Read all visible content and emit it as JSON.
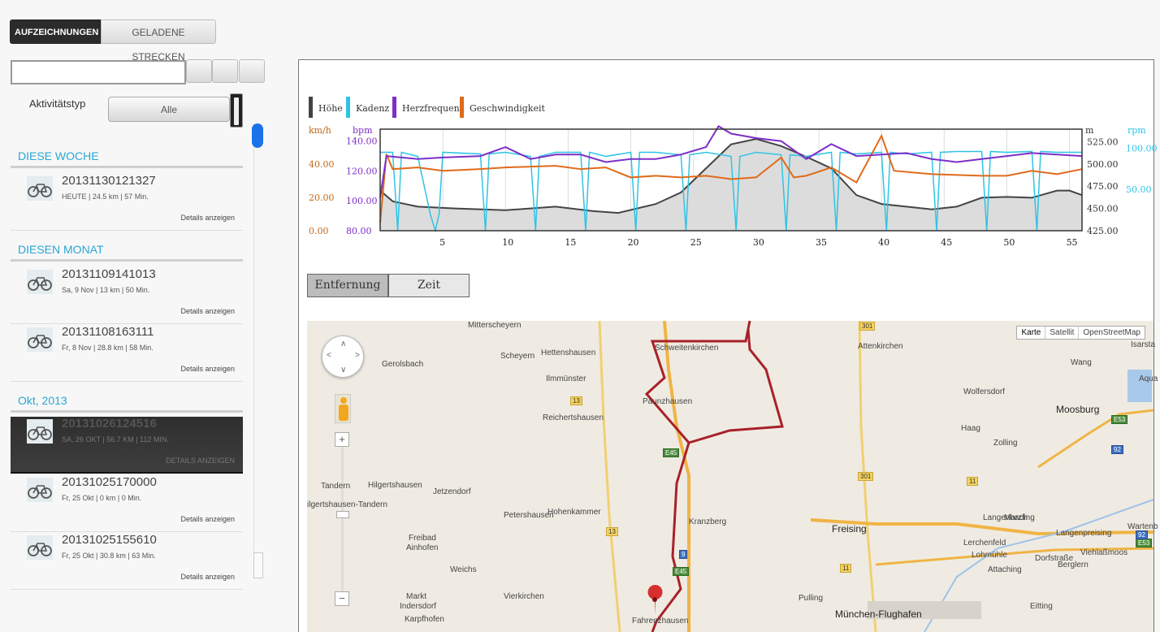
{
  "tabs": {
    "active": "AUFZEICHNUNGEN",
    "inactive": "GELADENE STRECKEN"
  },
  "search": {
    "value": ""
  },
  "filter": {
    "label": "Aktivitätstyp",
    "selected": "Alle"
  },
  "groups": [
    {
      "title": "DIESE WOCHE",
      "items": [
        {
          "title": "20131130121327",
          "sub": "HEUTE | 24.5 km | 57 Min.",
          "details": "Details anzeigen"
        }
      ]
    },
    {
      "title": "DIESEN MONAT",
      "items": [
        {
          "title": "20131109141013",
          "sub": "Sa, 9 Nov | 13 km | 50 Min.",
          "details": "Details anzeigen"
        },
        {
          "title": "20131108163111",
          "sub": "Fr, 8 Nov | 28.8 km | 58 Min.",
          "details": "Details anzeigen"
        }
      ]
    },
    {
      "title": "Okt, 2013",
      "items": [
        {
          "title": "20131026124516",
          "sub": "SA, 26 OKT | 56.7 KM | 112 MIN.",
          "details": "DETAILS ANZEIGEN"
        },
        {
          "title": "20131025170000",
          "sub": "Fr, 25 Okt | 0 km | 0 Min.",
          "details": "Details anzeigen"
        },
        {
          "title": "20131025155610",
          "sub": "Fr, 25 Okt | 30.8 km | 63 Min.",
          "details": "Details anzeigen"
        }
      ]
    }
  ],
  "chart_data": {
    "type": "line",
    "legend": [
      "Höhe",
      "Kadenz",
      "Herzfrequenz",
      "Geschwindigkeit"
    ],
    "colors": {
      "hoehe": "#444444",
      "kadenz": "#2ec4e6",
      "herz": "#7d2fc7",
      "speed": "#e06a1a"
    },
    "axis_units": {
      "speed": "km/h",
      "hr": "bpm",
      "alt": "m",
      "cad": "rpm"
    },
    "speed_ticks": [
      "0.00",
      "20.00",
      "40.00"
    ],
    "hr_ticks": [
      "80.00",
      "100.00",
      "120.00",
      "140.00"
    ],
    "alt_ticks": [
      "425.00",
      "450.00",
      "475.00",
      "500.00",
      "525.00"
    ],
    "cad_ticks": [
      "50.00",
      "100.00"
    ],
    "x_ticks": [
      "5",
      "10",
      "15",
      "20",
      "25",
      "30",
      "35",
      "40",
      "45",
      "50",
      "55"
    ],
    "xlim": [
      0,
      56
    ],
    "hoehe": [
      [
        0,
        470
      ],
      [
        1,
        458
      ],
      [
        3,
        452
      ],
      [
        6,
        450
      ],
      [
        10,
        448
      ],
      [
        14,
        452
      ],
      [
        17,
        447
      ],
      [
        19,
        445
      ],
      [
        22,
        455
      ],
      [
        24,
        468
      ],
      [
        26,
        495
      ],
      [
        28,
        522
      ],
      [
        30,
        528
      ],
      [
        32,
        520
      ],
      [
        34,
        508
      ],
      [
        36,
        495
      ],
      [
        38,
        465
      ],
      [
        40,
        455
      ],
      [
        42,
        452
      ],
      [
        44,
        449
      ],
      [
        46,
        452
      ],
      [
        48,
        462
      ],
      [
        50,
        463
      ],
      [
        52,
        462
      ],
      [
        54,
        470
      ],
      [
        55,
        470
      ],
      [
        56,
        465
      ]
    ],
    "herz": [
      [
        0,
        102
      ],
      [
        0.5,
        130
      ],
      [
        3,
        128
      ],
      [
        5,
        129
      ],
      [
        8,
        130
      ],
      [
        10,
        136
      ],
      [
        12,
        128
      ],
      [
        14,
        131
      ],
      [
        16,
        131
      ],
      [
        18,
        126
      ],
      [
        20,
        128
      ],
      [
        22,
        128
      ],
      [
        24,
        131
      ],
      [
        26,
        136
      ],
      [
        27,
        150
      ],
      [
        28,
        145
      ],
      [
        30,
        142
      ],
      [
        32,
        140
      ],
      [
        34,
        128
      ],
      [
        36,
        138
      ],
      [
        38,
        130
      ],
      [
        40,
        131
      ],
      [
        42,
        132
      ],
      [
        44,
        128
      ],
      [
        46,
        126
      ],
      [
        48,
        128
      ],
      [
        50,
        130
      ],
      [
        52,
        132
      ],
      [
        54,
        131
      ],
      [
        56,
        130
      ]
    ],
    "speed": [
      [
        0,
        5
      ],
      [
        0.5,
        46
      ],
      [
        1,
        37
      ],
      [
        3,
        38
      ],
      [
        5,
        36
      ],
      [
        8,
        37
      ],
      [
        10,
        38
      ],
      [
        14,
        39
      ],
      [
        16,
        37
      ],
      [
        18,
        38
      ],
      [
        20,
        32
      ],
      [
        22,
        33
      ],
      [
        24,
        32
      ],
      [
        26,
        33
      ],
      [
        28,
        31
      ],
      [
        30,
        32
      ],
      [
        32,
        44
      ],
      [
        33,
        32
      ],
      [
        34,
        33
      ],
      [
        36,
        38
      ],
      [
        38,
        29
      ],
      [
        40,
        57
      ],
      [
        41,
        36
      ],
      [
        44,
        34
      ],
      [
        48,
        33
      ],
      [
        50,
        33
      ],
      [
        52,
        36
      ],
      [
        54,
        34
      ],
      [
        56,
        37
      ]
    ],
    "kadenz": [
      [
        0,
        95
      ],
      [
        1,
        95
      ],
      [
        3,
        90
      ],
      [
        4,
        20
      ],
      [
        5,
        95
      ],
      [
        8,
        93
      ],
      [
        10,
        95
      ],
      [
        12,
        90
      ],
      [
        14,
        95
      ],
      [
        16,
        95
      ],
      [
        18,
        90
      ],
      [
        20,
        95
      ],
      [
        22,
        95
      ],
      [
        24,
        92
      ],
      [
        26,
        95
      ],
      [
        28,
        90
      ],
      [
        30,
        95
      ],
      [
        32,
        92
      ],
      [
        34,
        90
      ],
      [
        36,
        95
      ],
      [
        38,
        93
      ],
      [
        40,
        95
      ],
      [
        42,
        93
      ],
      [
        44,
        95
      ],
      [
        46,
        96
      ],
      [
        48,
        96
      ],
      [
        50,
        95
      ],
      [
        52,
        96
      ],
      [
        54,
        95
      ],
      [
        56,
        95
      ]
    ]
  },
  "mode": {
    "distance": "Entfernung",
    "time": "Zeit"
  },
  "map": {
    "types": [
      "Karte",
      "Satellit",
      "OpenStreetMap"
    ],
    "places": [
      {
        "t": "Mitterscheyern"
      },
      {
        "t": "Scheyern"
      },
      {
        "t": "Hettenshausen"
      },
      {
        "t": "Gerolsbach"
      },
      {
        "t": "Ilmmünster"
      },
      {
        "t": "Schweitenkirchen"
      },
      {
        "t": "Attenkirchen"
      },
      {
        "t": "Paunzhausen"
      },
      {
        "t": "Wolfersdorf"
      },
      {
        "t": "Reichertshausen"
      },
      {
        "t": "Haag"
      },
      {
        "t": "Zolling"
      },
      {
        "t": "Jetzendorf"
      },
      {
        "t": "Hohenkammer"
      },
      {
        "t": "Hilgertshausen"
      },
      {
        "t": "Tandern"
      },
      {
        "t": "ilgertshausen-Tandern"
      },
      {
        "t": "Langenbach"
      },
      {
        "t": "Petershausen"
      },
      {
        "t": "Kranzberg"
      },
      {
        "t": "Marzling"
      },
      {
        "t": "Langenpreising"
      },
      {
        "t": "Freibad"
      },
      {
        "t": "Ainhofen"
      },
      {
        "t": "Lerchenfeld"
      },
      {
        "t": "Lohmühle"
      },
      {
        "t": "Dorfstraße"
      },
      {
        "t": "Viehlaßmoos"
      },
      {
        "t": "Weichs"
      },
      {
        "t": "Attaching"
      },
      {
        "t": "Berglern"
      },
      {
        "t": "Wartenb"
      },
      {
        "t": "Vierkirchen"
      },
      {
        "t": "Pulling"
      },
      {
        "t": "Markt"
      },
      {
        "t": "Indersdorf"
      },
      {
        "t": "Karpfhofen"
      },
      {
        "t": "Fahrenzhausen"
      },
      {
        "t": "Eitting"
      },
      {
        "t": "Wang"
      },
      {
        "t": "Isarsta"
      },
      {
        "t": "Aqua"
      }
    ],
    "big_places": [
      "Moosburg",
      "Freising",
      "München-Flughafen"
    ],
    "shields": [
      {
        "t": "301"
      },
      {
        "t": "13"
      },
      {
        "t": "E45"
      },
      {
        "t": "301"
      },
      {
        "t": "11"
      },
      {
        "t": "E53"
      },
      {
        "t": "92"
      },
      {
        "t": "13"
      },
      {
        "t": "E53"
      },
      {
        "t": "92"
      },
      {
        "t": "9"
      },
      {
        "t": "E45"
      },
      {
        "t": "11"
      }
    ]
  }
}
